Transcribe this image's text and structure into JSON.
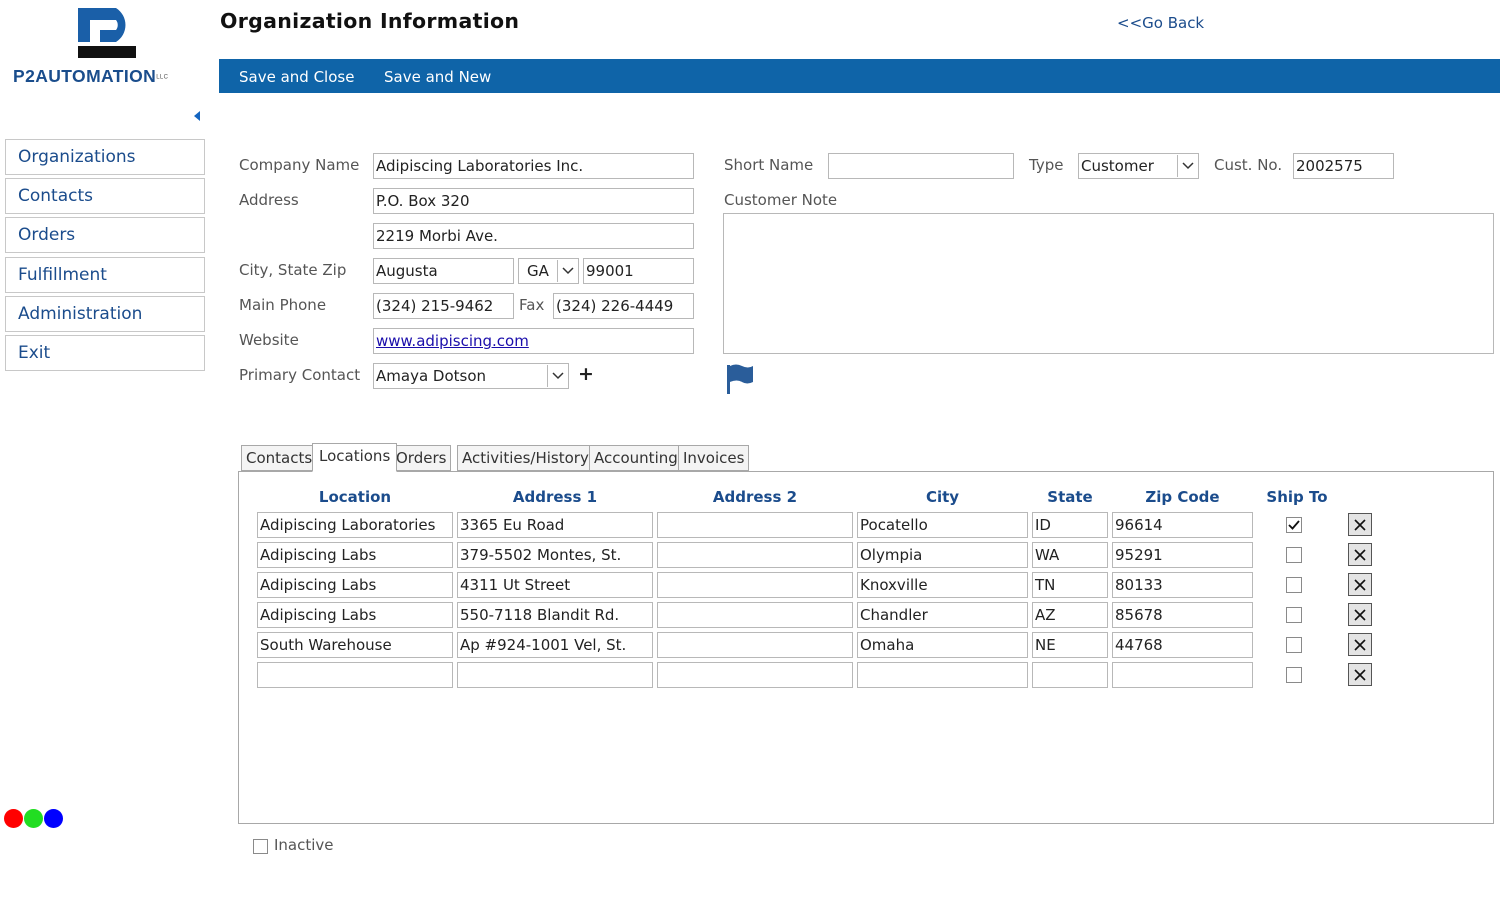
{
  "logo": {
    "text": "P2AUTOMATION",
    "suffix": "LLC"
  },
  "sidebar": {
    "items": [
      {
        "label": "Organizations"
      },
      {
        "label": "Contacts"
      },
      {
        "label": "Orders"
      },
      {
        "label": "Fulfillment"
      },
      {
        "label": "Administration"
      },
      {
        "label": "Exit"
      }
    ],
    "status_dots": [
      "#ff0000",
      "#22dd22",
      "#0000ff"
    ]
  },
  "header": {
    "title": "Organization Information",
    "go_back": "<<Go Back"
  },
  "toolbar": {
    "save_close": "Save and Close",
    "save_new": "Save and New",
    "color": "#0f64a8"
  },
  "form": {
    "company_name": {
      "label": "Company Name",
      "value": "Adipiscing Laboratories Inc."
    },
    "address": {
      "label": "Address",
      "line1": "P.O. Box 320",
      "line2": "2219 Morbi Ave."
    },
    "city_state_zip": {
      "label": "City, State Zip",
      "city": "Augusta",
      "state": "GA",
      "zip": "99001"
    },
    "main_phone": {
      "label": "Main Phone",
      "value": "(324) 215-9462"
    },
    "fax": {
      "label": "Fax",
      "value": "(324) 226-4449"
    },
    "website": {
      "label": "Website",
      "value": "www.adipiscing.com"
    },
    "primary_contact": {
      "label": "Primary Contact",
      "value": "Amaya Dotson",
      "add_icon": "plus-icon"
    },
    "short_name": {
      "label": "Short Name",
      "value": ""
    },
    "type": {
      "label": "Type",
      "value": "Customer"
    },
    "cust_no": {
      "label": "Cust. No.",
      "value": "2002575"
    },
    "customer_note": {
      "label": "Customer Note",
      "value": ""
    },
    "flag_icon": "flag-icon"
  },
  "tabs": [
    {
      "label": "Contacts"
    },
    {
      "label": "Locations"
    },
    {
      "label": "Orders"
    },
    {
      "label": "Activities/History"
    },
    {
      "label": "Accounting"
    },
    {
      "label": "Invoices"
    }
  ],
  "active_tab": "Locations",
  "locations": {
    "columns": [
      "Location",
      "Address 1",
      "Address 2",
      "City",
      "State",
      "Zip Code",
      "Ship To"
    ],
    "rows": [
      {
        "location": "Adipiscing Laboratories",
        "address1": "3365 Eu Road",
        "address2": "",
        "city": "Pocatello",
        "state": "ID",
        "zip": "96614",
        "ship_to": true
      },
      {
        "location": "Adipiscing Labs",
        "address1": "379-5502 Montes, St.",
        "address2": "",
        "city": "Olympia",
        "state": "WA",
        "zip": "95291",
        "ship_to": false
      },
      {
        "location": "Adipiscing Labs",
        "address1": "4311 Ut Street",
        "address2": "",
        "city": "Knoxville",
        "state": "TN",
        "zip": "80133",
        "ship_to": false
      },
      {
        "location": "Adipiscing Labs",
        "address1": "550-7118 Blandit Rd.",
        "address2": "",
        "city": "Chandler",
        "state": "AZ",
        "zip": "85678",
        "ship_to": false
      },
      {
        "location": "South Warehouse",
        "address1": "Ap #924-1001 Vel, St.",
        "address2": "",
        "city": "Omaha",
        "state": "NE",
        "zip": "44768",
        "ship_to": false
      },
      {
        "location": "",
        "address1": "",
        "address2": "",
        "city": "",
        "state": "",
        "zip": "",
        "ship_to": false
      }
    ]
  },
  "inactive": {
    "label": "Inactive",
    "checked": false
  }
}
